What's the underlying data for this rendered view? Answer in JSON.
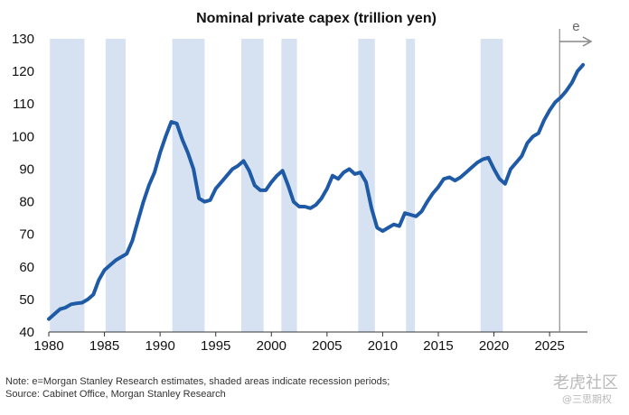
{
  "chart_data": {
    "type": "line",
    "title": "Nominal private capex (trillion yen)",
    "xlabel": "",
    "ylabel": "",
    "xlim": [
      1980,
      2028.4
    ],
    "ylim": [
      40,
      130
    ],
    "x_ticks": [
      1980,
      1985,
      1990,
      1995,
      2000,
      2005,
      2010,
      2015,
      2020,
      2025
    ],
    "y_ticks": [
      40,
      50,
      60,
      70,
      80,
      90,
      100,
      110,
      120,
      130
    ],
    "forecast_start": 2025.9,
    "forecast_label": "e",
    "line_color": "#1f5aa6",
    "shade_color": "#d6e2f1",
    "recessions": [
      [
        1980.1,
        1983.2
      ],
      [
        1985.1,
        1986.9
      ],
      [
        1991.1,
        1994.0
      ],
      [
        1997.3,
        1999.3
      ],
      [
        2000.9,
        2002.3
      ],
      [
        2007.8,
        2009.3
      ],
      [
        2012.1,
        2012.9
      ],
      [
        2018.8,
        2020.8
      ]
    ],
    "series": [
      {
        "name": "Nominal private capex",
        "points": [
          [
            1980.0,
            44.0
          ],
          [
            1980.5,
            45.5
          ],
          [
            1981.0,
            47.0
          ],
          [
            1981.5,
            47.5
          ],
          [
            1982.0,
            48.5
          ],
          [
            1982.5,
            48.8
          ],
          [
            1983.0,
            49.0
          ],
          [
            1983.5,
            50.0
          ],
          [
            1984.0,
            51.5
          ],
          [
            1984.5,
            56.0
          ],
          [
            1985.0,
            59.0
          ],
          [
            1985.5,
            60.5
          ],
          [
            1986.0,
            62.0
          ],
          [
            1986.5,
            63.0
          ],
          [
            1987.0,
            64.0
          ],
          [
            1987.5,
            68.0
          ],
          [
            1988.0,
            74.0
          ],
          [
            1988.5,
            80.0
          ],
          [
            1989.0,
            85.0
          ],
          [
            1989.5,
            89.0
          ],
          [
            1990.0,
            95.0
          ],
          [
            1990.5,
            100.0
          ],
          [
            1991.0,
            104.5
          ],
          [
            1991.5,
            104.0
          ],
          [
            1992.0,
            99.0
          ],
          [
            1992.5,
            95.0
          ],
          [
            1993.0,
            90.0
          ],
          [
            1993.5,
            81.0
          ],
          [
            1994.0,
            80.0
          ],
          [
            1994.5,
            80.5
          ],
          [
            1995.0,
            84.0
          ],
          [
            1995.5,
            86.0
          ],
          [
            1996.0,
            88.0
          ],
          [
            1996.5,
            90.0
          ],
          [
            1997.0,
            91.0
          ],
          [
            1997.5,
            92.5
          ],
          [
            1998.0,
            89.5
          ],
          [
            1998.5,
            85.0
          ],
          [
            1999.0,
            83.5
          ],
          [
            1999.5,
            83.5
          ],
          [
            2000.0,
            86.0
          ],
          [
            2000.5,
            88.0
          ],
          [
            2001.0,
            89.5
          ],
          [
            2001.5,
            85.0
          ],
          [
            2002.0,
            80.0
          ],
          [
            2002.5,
            78.5
          ],
          [
            2003.0,
            78.5
          ],
          [
            2003.5,
            78.0
          ],
          [
            2004.0,
            79.0
          ],
          [
            2004.5,
            81.0
          ],
          [
            2005.0,
            84.0
          ],
          [
            2005.5,
            88.0
          ],
          [
            2006.0,
            87.0
          ],
          [
            2006.5,
            89.0
          ],
          [
            2007.0,
            90.0
          ],
          [
            2007.5,
            88.5
          ],
          [
            2008.0,
            89.0
          ],
          [
            2008.5,
            86.0
          ],
          [
            2009.0,
            78.0
          ],
          [
            2009.5,
            72.0
          ],
          [
            2010.0,
            71.0
          ],
          [
            2010.5,
            72.0
          ],
          [
            2011.0,
            73.0
          ],
          [
            2011.5,
            72.5
          ],
          [
            2012.0,
            76.5
          ],
          [
            2012.5,
            76.0
          ],
          [
            2013.0,
            75.5
          ],
          [
            2013.5,
            77.0
          ],
          [
            2014.0,
            80.0
          ],
          [
            2014.5,
            82.5
          ],
          [
            2015.0,
            84.5
          ],
          [
            2015.5,
            87.0
          ],
          [
            2016.0,
            87.5
          ],
          [
            2016.5,
            86.5
          ],
          [
            2017.0,
            87.5
          ],
          [
            2017.5,
            89.0
          ],
          [
            2018.0,
            90.5
          ],
          [
            2018.5,
            92.0
          ],
          [
            2019.0,
            93.0
          ],
          [
            2019.5,
            93.5
          ],
          [
            2020.0,
            90.0
          ],
          [
            2020.5,
            87.0
          ],
          [
            2021.0,
            85.5
          ],
          [
            2021.5,
            90.0
          ],
          [
            2022.0,
            92.0
          ],
          [
            2022.5,
            94.0
          ],
          [
            2023.0,
            98.0
          ],
          [
            2023.5,
            100.0
          ],
          [
            2024.0,
            101.0
          ],
          [
            2024.5,
            105.0
          ],
          [
            2025.0,
            108.0
          ],
          [
            2025.5,
            110.5
          ],
          [
            2026.0,
            112.0
          ],
          [
            2026.5,
            114.0
          ],
          [
            2027.0,
            116.5
          ],
          [
            2027.5,
            120.0
          ],
          [
            2028.0,
            122.0
          ]
        ]
      }
    ],
    "notes": [
      "Note: e=Morgan Stanley Research estimates, shaded areas indicate recession periods;",
      "Source: Cabinet Office, Morgan Stanley Research"
    ]
  },
  "watermark": {
    "line1": "老虎社区",
    "line2": "@三思期权"
  }
}
